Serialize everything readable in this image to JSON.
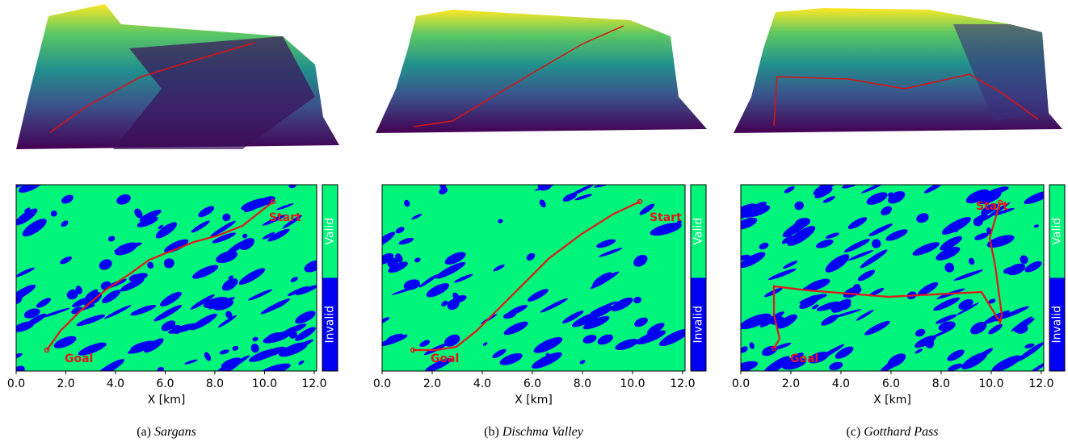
{
  "panels": [
    {
      "caption_label": "(a)",
      "caption_name": "Sargans",
      "xlabel": "X [km]",
      "xlim": [
        0,
        12.1
      ],
      "xticks": [
        {
          "value": 0,
          "label": "0.0"
        },
        {
          "value": 2,
          "label": "2.0"
        },
        {
          "value": 4,
          "label": "4.0"
        },
        {
          "value": 6,
          "label": "6.0"
        },
        {
          "value": 8,
          "label": "8.0"
        },
        {
          "value": 10,
          "label": "10.0"
        },
        {
          "value": 12,
          "label": "12.0"
        }
      ],
      "start_label": "Start",
      "goal_label": "Goal",
      "colorbar": [
        "Valid",
        "Invalid"
      ]
    },
    {
      "caption_label": "(b)",
      "caption_name": "Dischma Valley",
      "xlabel": "X [km]",
      "xlim": [
        0,
        12.1
      ],
      "xticks": [
        {
          "value": 0,
          "label": "0.0"
        },
        {
          "value": 2,
          "label": "2.0"
        },
        {
          "value": 4,
          "label": "4.0"
        },
        {
          "value": 6,
          "label": "6.0"
        },
        {
          "value": 8,
          "label": "8.0"
        },
        {
          "value": 10,
          "label": "10.0"
        },
        {
          "value": 12,
          "label": "12.0"
        }
      ],
      "start_label": "Start",
      "goal_label": "Goal",
      "colorbar": [
        "Valid",
        "Invalid"
      ]
    },
    {
      "caption_label": "(c)",
      "caption_name": "Gotthard Pass",
      "xlabel": "X [km]",
      "xlim": [
        0,
        12.1
      ],
      "xticks": [
        {
          "value": 0,
          "label": "0.0"
        },
        {
          "value": 2,
          "label": "2.0"
        },
        {
          "value": 4,
          "label": "4.0"
        },
        {
          "value": 6,
          "label": "6.0"
        },
        {
          "value": 8,
          "label": "8.0"
        },
        {
          "value": 10,
          "label": "10.0"
        },
        {
          "value": 12,
          "label": "12.0"
        }
      ],
      "start_label": "Start",
      "goal_label": "Goal",
      "colorbar": [
        "Valid",
        "Invalid"
      ]
    }
  ]
}
